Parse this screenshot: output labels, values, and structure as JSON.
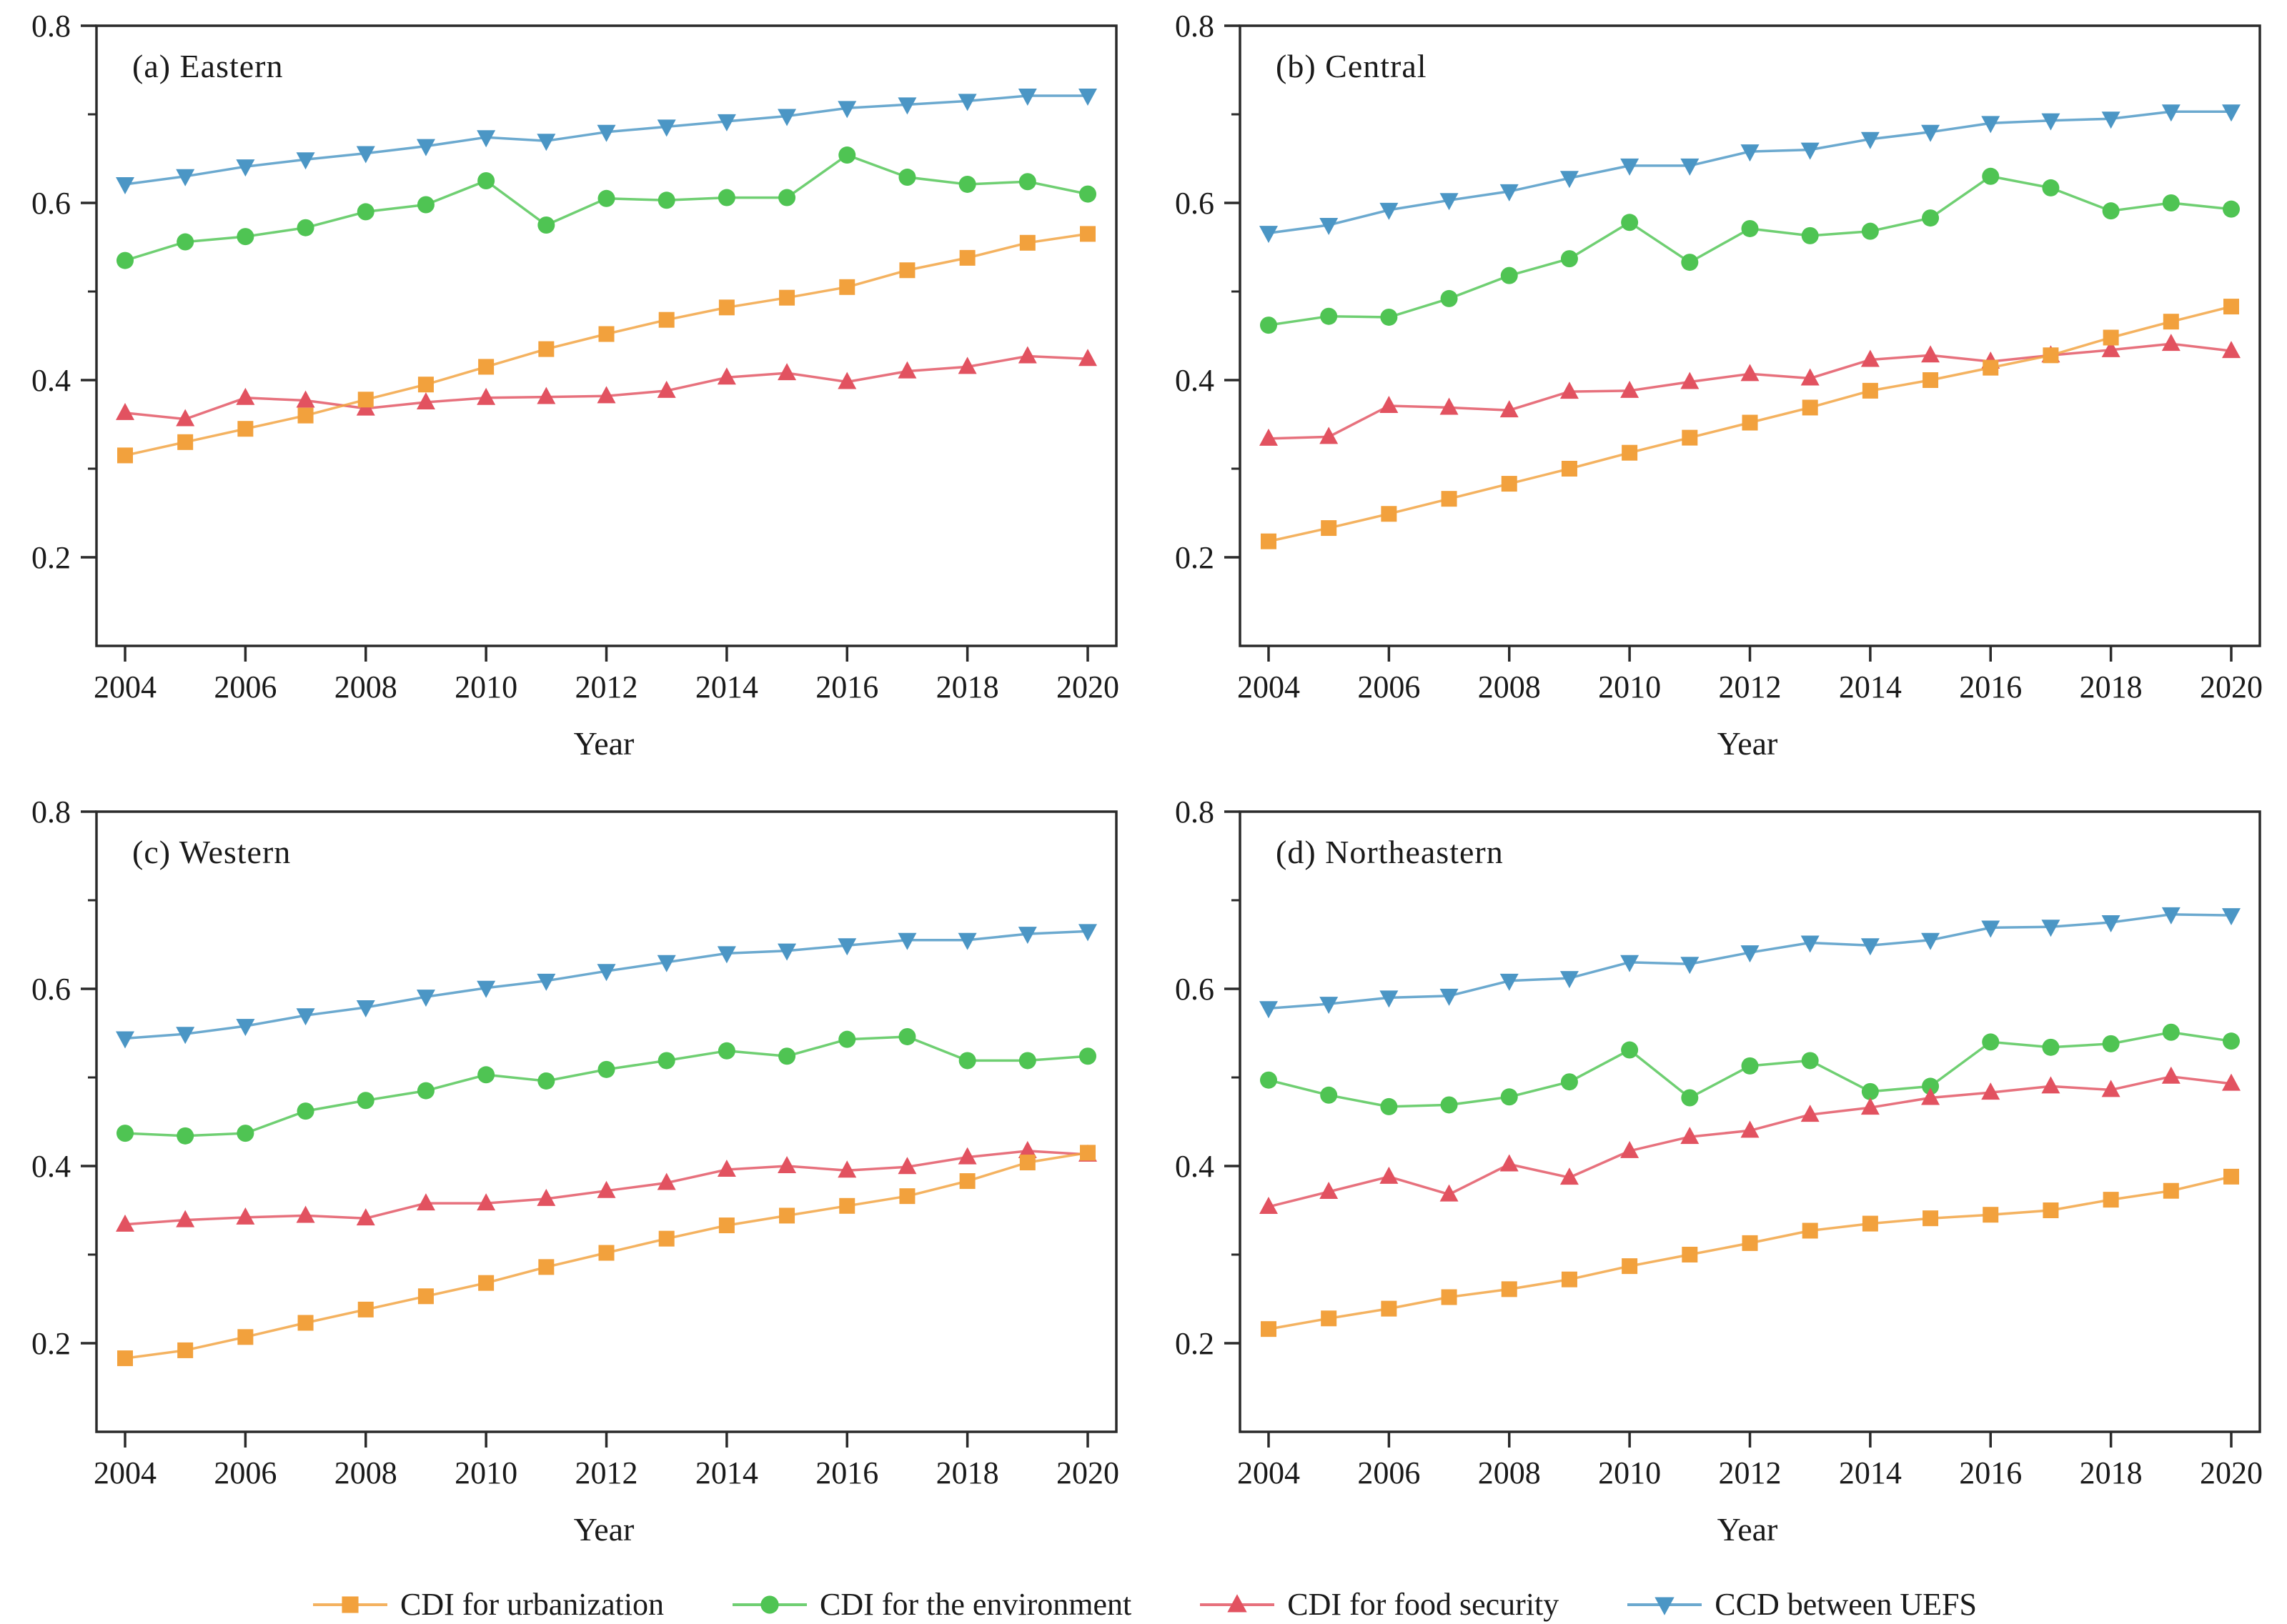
{
  "legend": {
    "items": [
      {
        "label": "CDI for urbanization",
        "color": "#F2A13D",
        "marker": "square"
      },
      {
        "label": "CDI for the environment",
        "color": "#4FC453",
        "marker": "circle"
      },
      {
        "label": "CDI for food security",
        "color": "#E25260",
        "marker": "triangle-up"
      },
      {
        "label": "CCD between UEFS",
        "color": "#4B96C5",
        "marker": "triangle-down"
      }
    ]
  },
  "axes": {
    "xlabel": "Year",
    "x_ticks": [
      2004,
      2006,
      2008,
      2010,
      2012,
      2014,
      2016,
      2018,
      2020
    ],
    "y_ticks": [
      0.2,
      0.4,
      0.6,
      0.8
    ],
    "y_minor_ticks": [
      0.3,
      0.5,
      0.7
    ],
    "ylim": [
      0.1,
      0.8
    ]
  },
  "chart_data": [
    {
      "type": "line",
      "title": "(a) Eastern",
      "xlabel": "Year",
      "x": [
        2004,
        2005,
        2006,
        2007,
        2008,
        2009,
        2010,
        2011,
        2012,
        2013,
        2014,
        2015,
        2016,
        2017,
        2018,
        2019,
        2020
      ],
      "x_ticks": [
        2004,
        2006,
        2008,
        2010,
        2012,
        2014,
        2016,
        2018,
        2020
      ],
      "ylim": [
        0.1,
        0.8
      ],
      "y_ticks": [
        0.2,
        0.4,
        0.6,
        0.8
      ],
      "y_minor_ticks": [
        0.3,
        0.5,
        0.7
      ],
      "series": [
        {
          "name": "CDI for urbanization",
          "values": [
            0.315,
            0.33,
            0.345,
            0.36,
            0.378,
            0.395,
            0.415,
            0.435,
            0.452,
            0.468,
            0.482,
            0.493,
            0.505,
            0.524,
            0.538,
            0.555,
            0.565
          ]
        },
        {
          "name": "CDI for the environment",
          "values": [
            0.535,
            0.556,
            0.562,
            0.572,
            0.59,
            0.598,
            0.625,
            0.575,
            0.605,
            0.603,
            0.606,
            0.606,
            0.654,
            0.629,
            0.621,
            0.624,
            0.61
          ]
        },
        {
          "name": "CDI for food security",
          "values": [
            0.363,
            0.356,
            0.38,
            0.377,
            0.368,
            0.375,
            0.38,
            0.381,
            0.382,
            0.388,
            0.403,
            0.408,
            0.398,
            0.41,
            0.415,
            0.427,
            0.424
          ]
        },
        {
          "name": "CCD between UEFS",
          "values": [
            0.621,
            0.63,
            0.641,
            0.649,
            0.656,
            0.664,
            0.674,
            0.67,
            0.68,
            0.686,
            0.692,
            0.698,
            0.707,
            0.711,
            0.715,
            0.721,
            0.721
          ]
        }
      ]
    },
    {
      "type": "line",
      "title": "(b) Central",
      "xlabel": "Year",
      "x": [
        2004,
        2005,
        2006,
        2007,
        2008,
        2009,
        2010,
        2011,
        2012,
        2013,
        2014,
        2015,
        2016,
        2017,
        2018,
        2019,
        2020
      ],
      "x_ticks": [
        2004,
        2006,
        2008,
        2010,
        2012,
        2014,
        2016,
        2018,
        2020
      ],
      "ylim": [
        0.1,
        0.8
      ],
      "y_ticks": [
        0.2,
        0.4,
        0.6,
        0.8
      ],
      "y_minor_ticks": [
        0.3,
        0.5,
        0.7
      ],
      "series": [
        {
          "name": "CDI for urbanization",
          "values": [
            0.218,
            0.233,
            0.249,
            0.266,
            0.283,
            0.3,
            0.318,
            0.335,
            0.352,
            0.369,
            0.388,
            0.4,
            0.414,
            0.428,
            0.448,
            0.466,
            0.483
          ]
        },
        {
          "name": "CDI for the environment",
          "values": [
            0.462,
            0.472,
            0.471,
            0.492,
            0.518,
            0.537,
            0.578,
            0.533,
            0.571,
            0.563,
            0.568,
            0.583,
            0.63,
            0.617,
            0.591,
            0.6,
            0.593
          ]
        },
        {
          "name": "CDI for food security",
          "values": [
            0.334,
            0.336,
            0.371,
            0.369,
            0.366,
            0.387,
            0.388,
            0.398,
            0.407,
            0.402,
            0.423,
            0.428,
            0.421,
            0.428,
            0.434,
            0.441,
            0.433
          ]
        },
        {
          "name": "CCD between UEFS",
          "values": [
            0.566,
            0.575,
            0.592,
            0.603,
            0.613,
            0.628,
            0.642,
            0.642,
            0.658,
            0.66,
            0.672,
            0.68,
            0.69,
            0.693,
            0.695,
            0.703,
            0.703
          ]
        }
      ]
    },
    {
      "type": "line",
      "title": "(c) Western",
      "xlabel": "Year",
      "x": [
        2004,
        2005,
        2006,
        2007,
        2008,
        2009,
        2010,
        2011,
        2012,
        2013,
        2014,
        2015,
        2016,
        2017,
        2018,
        2019,
        2020
      ],
      "x_ticks": [
        2004,
        2006,
        2008,
        2010,
        2012,
        2014,
        2016,
        2018,
        2020
      ],
      "ylim": [
        0.1,
        0.8
      ],
      "y_ticks": [
        0.2,
        0.4,
        0.6,
        0.8
      ],
      "y_minor_ticks": [
        0.3,
        0.5,
        0.7
      ],
      "series": [
        {
          "name": "CDI for urbanization",
          "values": [
            0.183,
            0.192,
            0.207,
            0.223,
            0.238,
            0.253,
            0.268,
            0.286,
            0.302,
            0.318,
            0.333,
            0.344,
            0.355,
            0.366,
            0.383,
            0.404,
            0.415
          ]
        },
        {
          "name": "CDI for the environment",
          "values": [
            0.437,
            0.434,
            0.437,
            0.462,
            0.474,
            0.485,
            0.503,
            0.496,
            0.509,
            0.519,
            0.53,
            0.524,
            0.543,
            0.546,
            0.519,
            0.519,
            0.524
          ]
        },
        {
          "name": "CDI for food security",
          "values": [
            0.334,
            0.339,
            0.342,
            0.344,
            0.341,
            0.358,
            0.358,
            0.363,
            0.372,
            0.381,
            0.396,
            0.4,
            0.395,
            0.399,
            0.41,
            0.417,
            0.413
          ]
        },
        {
          "name": "CCD between UEFS",
          "values": [
            0.544,
            0.549,
            0.558,
            0.57,
            0.579,
            0.591,
            0.601,
            0.609,
            0.62,
            0.63,
            0.64,
            0.643,
            0.649,
            0.655,
            0.655,
            0.662,
            0.665
          ]
        }
      ]
    },
    {
      "type": "line",
      "title": "(d) Northeastern",
      "xlabel": "Year",
      "x": [
        2004,
        2005,
        2006,
        2007,
        2008,
        2009,
        2010,
        2011,
        2012,
        2013,
        2014,
        2015,
        2016,
        2017,
        2018,
        2019,
        2020
      ],
      "x_ticks": [
        2004,
        2006,
        2008,
        2010,
        2012,
        2014,
        2016,
        2018,
        2020
      ],
      "ylim": [
        0.1,
        0.8
      ],
      "y_ticks": [
        0.2,
        0.4,
        0.6,
        0.8
      ],
      "y_minor_ticks": [
        0.3,
        0.5,
        0.7
      ],
      "series": [
        {
          "name": "CDI for urbanization",
          "values": [
            0.216,
            0.228,
            0.239,
            0.252,
            0.261,
            0.272,
            0.287,
            0.3,
            0.313,
            0.327,
            0.335,
            0.341,
            0.345,
            0.35,
            0.362,
            0.372,
            0.388
          ]
        },
        {
          "name": "CDI for the environment",
          "values": [
            0.497,
            0.48,
            0.467,
            0.469,
            0.478,
            0.495,
            0.531,
            0.477,
            0.513,
            0.519,
            0.484,
            0.49,
            0.54,
            0.534,
            0.538,
            0.551,
            0.541
          ]
        },
        {
          "name": "CDI for food security",
          "values": [
            0.354,
            0.371,
            0.388,
            0.368,
            0.402,
            0.387,
            0.417,
            0.433,
            0.44,
            0.458,
            0.466,
            0.477,
            0.483,
            0.49,
            0.486,
            0.501,
            0.493
          ]
        },
        {
          "name": "CCD between UEFS",
          "values": [
            0.578,
            0.583,
            0.59,
            0.592,
            0.609,
            0.612,
            0.63,
            0.628,
            0.641,
            0.652,
            0.649,
            0.655,
            0.669,
            0.67,
            0.675,
            0.684,
            0.683
          ]
        }
      ]
    }
  ]
}
